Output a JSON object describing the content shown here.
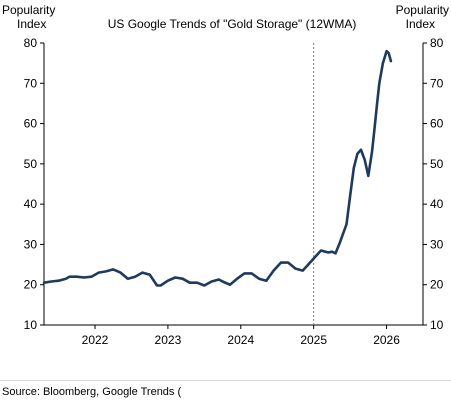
{
  "chart_data": {
    "type": "line",
    "title": "US Google Trends of \"Gold Storage\" (12WMA)",
    "ylabel_left": [
      "Popularity",
      "Index"
    ],
    "ylabel_right": [
      "Popularity",
      "Index"
    ],
    "ylim": [
      10,
      80
    ],
    "yticks": [
      10,
      20,
      30,
      40,
      50,
      60,
      70,
      80
    ],
    "xlim": [
      2021.3,
      2026.5
    ],
    "xticks": [
      2022,
      2023,
      2024,
      2025,
      2026
    ],
    "xtick_labels": [
      "2022",
      "2023",
      "2024",
      "2025",
      "2026"
    ],
    "grid": false,
    "vline_x": 2025.0,
    "series": [
      {
        "color": "#1f3a5f",
        "x": [
          2021.3,
          2021.4,
          2021.5,
          2021.6,
          2021.65,
          2021.75,
          2021.85,
          2021.95,
          2022.05,
          2022.15,
          2022.25,
          2022.35,
          2022.45,
          2022.55,
          2022.65,
          2022.75,
          2022.85,
          2022.9,
          2023.0,
          2023.1,
          2023.2,
          2023.3,
          2023.4,
          2023.5,
          2023.6,
          2023.7,
          2023.75,
          2023.85,
          2023.95,
          2024.05,
          2024.15,
          2024.25,
          2024.35,
          2024.45,
          2024.55,
          2024.65,
          2024.75,
          2024.85,
          2024.9,
          2025.0,
          2025.1,
          2025.2,
          2025.25,
          2025.3,
          2025.35,
          2025.4,
          2025.45,
          2025.5,
          2025.55,
          2025.6,
          2025.65,
          2025.7,
          2025.75,
          2025.8,
          2025.83,
          2025.87,
          2025.9,
          2025.95,
          2026.0,
          2026.03,
          2026.06
        ],
        "values": [
          20.5,
          20.8,
          21.0,
          21.5,
          22.0,
          22.0,
          21.8,
          22.0,
          23.0,
          23.3,
          23.8,
          23.0,
          21.5,
          22.0,
          23.0,
          22.5,
          19.8,
          19.8,
          21.0,
          21.8,
          21.5,
          20.5,
          20.5,
          19.8,
          20.8,
          21.3,
          20.8,
          20.0,
          21.5,
          22.8,
          22.8,
          21.5,
          21.0,
          23.5,
          25.5,
          25.5,
          24.0,
          23.5,
          24.5,
          26.5,
          28.5,
          28.0,
          28.2,
          27.8,
          30.0,
          32.5,
          35.0,
          42.0,
          49.0,
          52.5,
          53.5,
          51.0,
          47.0,
          53.0,
          58.0,
          65.0,
          70.0,
          75.0,
          78.0,
          77.5,
          75.5
        ]
      }
    ]
  },
  "footer": {
    "source": "Source: Bloomberg, Google Trends ("
  }
}
